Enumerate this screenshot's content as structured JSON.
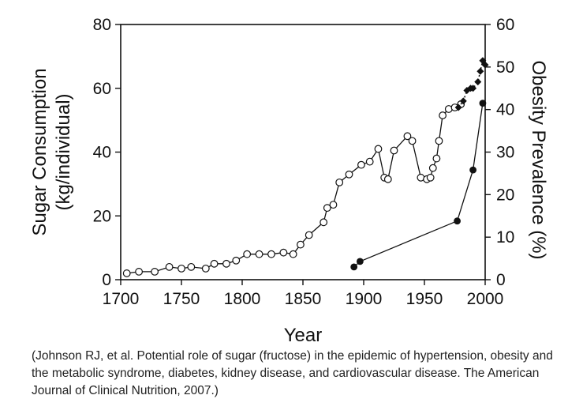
{
  "chart_data": {
    "type": "line",
    "xlabel": "Year",
    "ylabel_left": "Sugar Consumption\n(kg/individual)",
    "ylabel_right": "Obesity Prevalence (%)",
    "xlim": [
      1700,
      2000
    ],
    "ylim_left": [
      0,
      80
    ],
    "ylim_right": [
      0,
      60
    ],
    "x_ticks": [
      "1700",
      "1750",
      "1800",
      "1850",
      "1900",
      "1950",
      "2000"
    ],
    "y_left_ticks": [
      "0",
      "20",
      "40",
      "60",
      "80"
    ],
    "y_right_ticks": [
      "0",
      "10",
      "20",
      "30",
      "40",
      "50",
      "60"
    ],
    "grid": false,
    "series": [
      {
        "axis": "left",
        "marker": "open-circle",
        "line": "solid",
        "x": [
          1705,
          1715,
          1728,
          1740,
          1750,
          1758,
          1770,
          1777,
          1787,
          1795,
          1804,
          1814,
          1824,
          1834,
          1842,
          1848,
          1855,
          1867,
          1870,
          1875,
          1880,
          1888,
          1898,
          1905,
          1912,
          1917,
          1920,
          1925,
          1936,
          1940,
          1947,
          1952,
          1955,
          1957,
          1960,
          1962,
          1965,
          1970,
          1975,
          1980
        ],
        "y": [
          2,
          2.5,
          2.5,
          4,
          3.5,
          4,
          3.5,
          5,
          5,
          6,
          8,
          8,
          8,
          8.5,
          8,
          11,
          14,
          18,
          22.5,
          23.5,
          30.5,
          33,
          36,
          37,
          41,
          32,
          31.5,
          40.5,
          45,
          43.5,
          32,
          31.5,
          32,
          35,
          38,
          43.5,
          51.5,
          53.5,
          54,
          55
        ]
      },
      {
        "axis": "right",
        "marker": "filled-diamond",
        "line": "dotted",
        "x": [
          1978,
          1982,
          1985,
          1988,
          1990,
          1994,
          1996,
          1998,
          2000
        ],
        "y": [
          40.5,
          42,
          44.5,
          45,
          45,
          46.5,
          49,
          51.5,
          50.5
        ]
      },
      {
        "axis": "right",
        "marker": "filled-circle",
        "line": "solid",
        "x": [
          1892,
          1897,
          1977,
          1990,
          1998
        ],
        "y": [
          3,
          4.3,
          13.8,
          25.8,
          41.5
        ]
      }
    ]
  },
  "caption": "(Johnson RJ, et al. Potential role of sugar (fructose) in the epidemic of hypertension, obesity and the metabolic syndrome, diabetes, kidney disease, and cardiovascular disease. The American Journal of Clinical Nutrition, 2007.)"
}
